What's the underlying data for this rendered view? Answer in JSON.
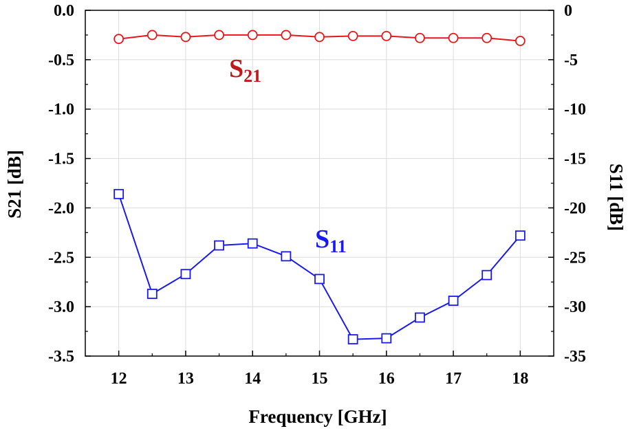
{
  "chart_data": {
    "type": "line",
    "x_label": "Frequency [GHz]",
    "y_left_label": "S21 [dB]",
    "y_right_label": "S11 [dB]",
    "x_range": [
      11.5,
      18.5
    ],
    "x_ticks": [
      "12",
      "13",
      "14",
      "15",
      "16",
      "17",
      "18"
    ],
    "y_left_range": [
      -3.5,
      0.0
    ],
    "y_left_ticks": [
      "0.0",
      "-0.5",
      "-1.0",
      "-1.5",
      "-2.0",
      "-2.5",
      "-3.0",
      "-3.5"
    ],
    "y_right_range": [
      -35,
      0
    ],
    "y_right_ticks": [
      "0",
      "-5",
      "-10",
      "-15",
      "-20",
      "-25",
      "-30",
      "-35"
    ],
    "grid": true,
    "x": [
      12,
      12.5,
      13,
      13.5,
      14,
      14.5,
      15,
      15.5,
      16,
      16.5,
      17,
      17.5,
      18
    ],
    "series": [
      {
        "name": "S",
        "name_sub": "21",
        "axis": "left",
        "color": "#e8161b",
        "marker": "circle",
        "values": [
          -0.29,
          -0.25,
          -0.27,
          -0.25,
          -0.25,
          -0.25,
          -0.27,
          -0.26,
          -0.26,
          -0.28,
          -0.28,
          -0.28,
          -0.31
        ]
      },
      {
        "name": "S",
        "name_sub": "11",
        "axis": "right",
        "color": "#1a1aee",
        "marker": "square",
        "values": [
          -18.6,
          -28.7,
          -26.7,
          -23.8,
          -23.6,
          -24.9,
          -27.2,
          -33.3,
          -33.2,
          -31.1,
          -29.4,
          -26.8,
          -22.8
        ]
      }
    ]
  }
}
